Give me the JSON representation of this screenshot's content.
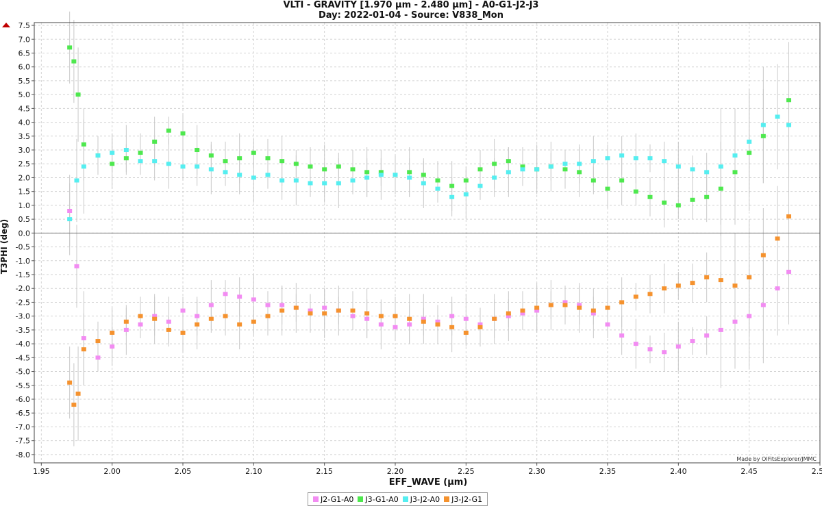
{
  "title": "VLTI - GRAVITY [1.970 µm - 2.480 µm] - A0-G1-J2-J3",
  "subtitle": "Day: 2022-01-04 - Source: V838_Mon",
  "credit": "Made by OIFitsExplorer/JMMC",
  "chart_data": {
    "type": "scatter",
    "xlabel": "EFF_WAVE (µm)",
    "ylabel": "T3PHI (deg)",
    "xlim": [
      1.945,
      2.5
    ],
    "ylim": [
      -8.3,
      7.6
    ],
    "xticks": [
      "1.95",
      "2.00",
      "2.05",
      "2.10",
      "2.15",
      "2.20",
      "2.25",
      "2.30",
      "2.35",
      "2.40",
      "2.45",
      "2.50"
    ],
    "yticks": [
      "7.5",
      "7.0",
      "6.5",
      "6.0",
      "5.5",
      "5.0",
      "4.5",
      "4.0",
      "3.5",
      "3.0",
      "2.5",
      "2.0",
      "1.5",
      "1.0",
      "0.5",
      "0.0",
      "-0.5",
      "-1.0",
      "-1.5",
      "-2.0",
      "-2.5",
      "-3.0",
      "-3.5",
      "-4.0",
      "-4.5",
      "-5.0",
      "-5.5",
      "-6.0",
      "-6.5",
      "-7.0",
      "-7.5",
      "-8.0"
    ],
    "grid": true,
    "legend_position": "bottom-center",
    "error_bar_color": "#c8c8c8",
    "series": [
      {
        "name": "J2-G1-A0",
        "color": "#f28cf2",
        "x": [
          1.97,
          1.975,
          1.98,
          1.99,
          2.0,
          2.01,
          2.02,
          2.03,
          2.04,
          2.05,
          2.06,
          2.07,
          2.08,
          2.09,
          2.1,
          2.11,
          2.12,
          2.13,
          2.14,
          2.15,
          2.16,
          2.17,
          2.18,
          2.19,
          2.2,
          2.21,
          2.22,
          2.23,
          2.24,
          2.25,
          2.26,
          2.27,
          2.28,
          2.29,
          2.3,
          2.31,
          2.32,
          2.33,
          2.34,
          2.35,
          2.36,
          2.37,
          2.38,
          2.39,
          2.4,
          2.41,
          2.42,
          2.43,
          2.44,
          2.45,
          2.46,
          2.47,
          2.478
        ],
        "y": [
          0.8,
          -1.2,
          -3.8,
          -4.5,
          -4.1,
          -3.5,
          -3.3,
          -3.0,
          -3.2,
          -2.8,
          -3.0,
          -2.6,
          -2.2,
          -2.3,
          -2.4,
          -2.6,
          -2.6,
          -2.7,
          -2.8,
          -2.7,
          -2.8,
          -3.0,
          -3.1,
          -3.3,
          -3.4,
          -3.3,
          -3.1,
          -3.2,
          -3.0,
          -3.1,
          -3.3,
          -3.1,
          -3.0,
          -2.9,
          -2.8,
          -2.6,
          -2.5,
          -2.6,
          -2.9,
          -3.3,
          -3.7,
          -4.0,
          -4.2,
          -4.3,
          -4.1,
          -3.9,
          -3.7,
          -3.5,
          -3.2,
          -3.0,
          -2.6,
          -2.0,
          -1.4
        ]
      },
      {
        "name": "J3-G1-A0",
        "color": "#4ee84e",
        "x": [
          1.97,
          1.973,
          1.976,
          1.98,
          1.99,
          2.0,
          2.01,
          2.02,
          2.03,
          2.04,
          2.05,
          2.06,
          2.07,
          2.08,
          2.09,
          2.1,
          2.11,
          2.12,
          2.13,
          2.14,
          2.15,
          2.16,
          2.17,
          2.18,
          2.19,
          2.2,
          2.21,
          2.22,
          2.23,
          2.24,
          2.25,
          2.26,
          2.27,
          2.28,
          2.29,
          2.3,
          2.31,
          2.32,
          2.33,
          2.34,
          2.35,
          2.36,
          2.37,
          2.38,
          2.39,
          2.4,
          2.41,
          2.42,
          2.43,
          2.44,
          2.45,
          2.46,
          2.47,
          2.478
        ],
        "y": [
          6.7,
          6.2,
          5.0,
          3.2,
          2.8,
          2.5,
          2.7,
          2.9,
          3.3,
          3.7,
          3.6,
          3.0,
          2.8,
          2.6,
          2.7,
          2.9,
          2.7,
          2.6,
          2.5,
          2.4,
          2.3,
          2.4,
          2.3,
          2.2,
          2.2,
          2.1,
          2.2,
          2.1,
          1.9,
          1.7,
          1.9,
          2.3,
          2.5,
          2.6,
          2.4,
          2.3,
          2.4,
          2.3,
          2.2,
          1.9,
          1.6,
          1.9,
          1.5,
          1.3,
          1.1,
          1.0,
          1.2,
          1.3,
          1.6,
          2.2,
          2.9,
          3.5,
          4.2,
          4.8
        ]
      },
      {
        "name": "J3-J2-A0",
        "color": "#55eef0",
        "x": [
          1.97,
          1.975,
          1.98,
          1.99,
          2.0,
          2.01,
          2.02,
          2.03,
          2.04,
          2.05,
          2.06,
          2.07,
          2.08,
          2.09,
          2.1,
          2.11,
          2.12,
          2.13,
          2.14,
          2.15,
          2.16,
          2.17,
          2.18,
          2.19,
          2.2,
          2.21,
          2.22,
          2.23,
          2.24,
          2.25,
          2.26,
          2.27,
          2.28,
          2.29,
          2.3,
          2.31,
          2.32,
          2.33,
          2.34,
          2.35,
          2.36,
          2.37,
          2.38,
          2.39,
          2.4,
          2.41,
          2.42,
          2.43,
          2.44,
          2.45,
          2.46,
          2.47,
          2.478
        ],
        "y": [
          0.5,
          1.9,
          2.4,
          2.8,
          2.9,
          3.0,
          2.6,
          2.6,
          2.5,
          2.4,
          2.4,
          2.3,
          2.2,
          2.1,
          2.0,
          2.1,
          1.9,
          1.9,
          1.8,
          1.8,
          1.8,
          1.9,
          2.0,
          2.1,
          2.1,
          2.0,
          1.8,
          1.6,
          1.3,
          1.4,
          1.7,
          2.0,
          2.2,
          2.3,
          2.3,
          2.4,
          2.5,
          2.5,
          2.6,
          2.7,
          2.8,
          2.7,
          2.7,
          2.6,
          2.4,
          2.3,
          2.2,
          2.4,
          2.8,
          3.3,
          3.9,
          4.2,
          3.9
        ]
      },
      {
        "name": "J3-J2-G1",
        "color": "#f5922e",
        "x": [
          1.97,
          1.973,
          1.976,
          1.98,
          1.99,
          2.0,
          2.01,
          2.02,
          2.03,
          2.04,
          2.05,
          2.06,
          2.07,
          2.08,
          2.09,
          2.1,
          2.11,
          2.12,
          2.13,
          2.14,
          2.15,
          2.16,
          2.17,
          2.18,
          2.19,
          2.2,
          2.21,
          2.22,
          2.23,
          2.24,
          2.25,
          2.26,
          2.27,
          2.28,
          2.29,
          2.3,
          2.31,
          2.32,
          2.33,
          2.34,
          2.35,
          2.36,
          2.37,
          2.38,
          2.39,
          2.4,
          2.41,
          2.42,
          2.43,
          2.44,
          2.45,
          2.46,
          2.47,
          2.478
        ],
        "y": [
          -5.4,
          -6.2,
          -5.8,
          -4.2,
          -3.9,
          -3.6,
          -3.2,
          -3.0,
          -3.1,
          -3.5,
          -3.6,
          -3.3,
          -3.1,
          -3.0,
          -3.3,
          -3.2,
          -3.0,
          -2.8,
          -2.7,
          -2.9,
          -2.9,
          -2.8,
          -2.8,
          -2.9,
          -3.0,
          -3.0,
          -3.1,
          -3.2,
          -3.3,
          -3.4,
          -3.6,
          -3.4,
          -3.1,
          -2.9,
          -2.8,
          -2.7,
          -2.6,
          -2.6,
          -2.7,
          -2.8,
          -2.7,
          -2.5,
          -2.3,
          -2.2,
          -2.0,
          -1.9,
          -1.8,
          -1.6,
          -1.7,
          -1.9,
          -1.6,
          -0.8,
          -0.2,
          0.6
        ]
      }
    ]
  }
}
